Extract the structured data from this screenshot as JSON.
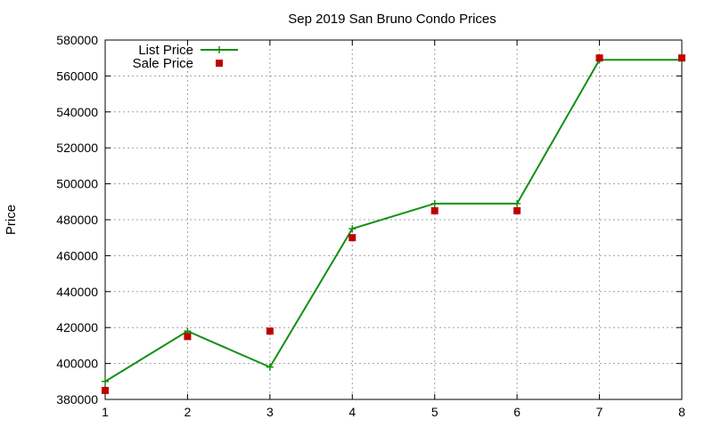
{
  "chart_data": {
    "type": "line",
    "title": "Sep 2019 San Bruno Condo Prices",
    "xlabel": "",
    "ylabel": "Price",
    "xlim": [
      1,
      8
    ],
    "ylim": [
      380000,
      580000
    ],
    "x_ticks": [
      "1",
      "2",
      "3",
      "4",
      "5",
      "6",
      "7",
      "8"
    ],
    "y_ticks": [
      "380000",
      "400000",
      "420000",
      "440000",
      "460000",
      "480000",
      "500000",
      "520000",
      "540000",
      "560000",
      "580000"
    ],
    "grid": true,
    "legend_position": "top-left",
    "series": [
      {
        "name": "List Price",
        "style": "line-with-plus-markers",
        "color": "#109010",
        "x": [
          1,
          2,
          3,
          4,
          5,
          6,
          7,
          8
        ],
        "values": [
          390000,
          418000,
          398000,
          475000,
          489000,
          489000,
          569000,
          569000
        ]
      },
      {
        "name": "Sale Price",
        "style": "square-markers",
        "color": "#c00000",
        "x": [
          1,
          2,
          3,
          4,
          5,
          6,
          7,
          8
        ],
        "values": [
          385000,
          415000,
          418000,
          470000,
          485000,
          485000,
          570000,
          570000
        ]
      }
    ]
  }
}
